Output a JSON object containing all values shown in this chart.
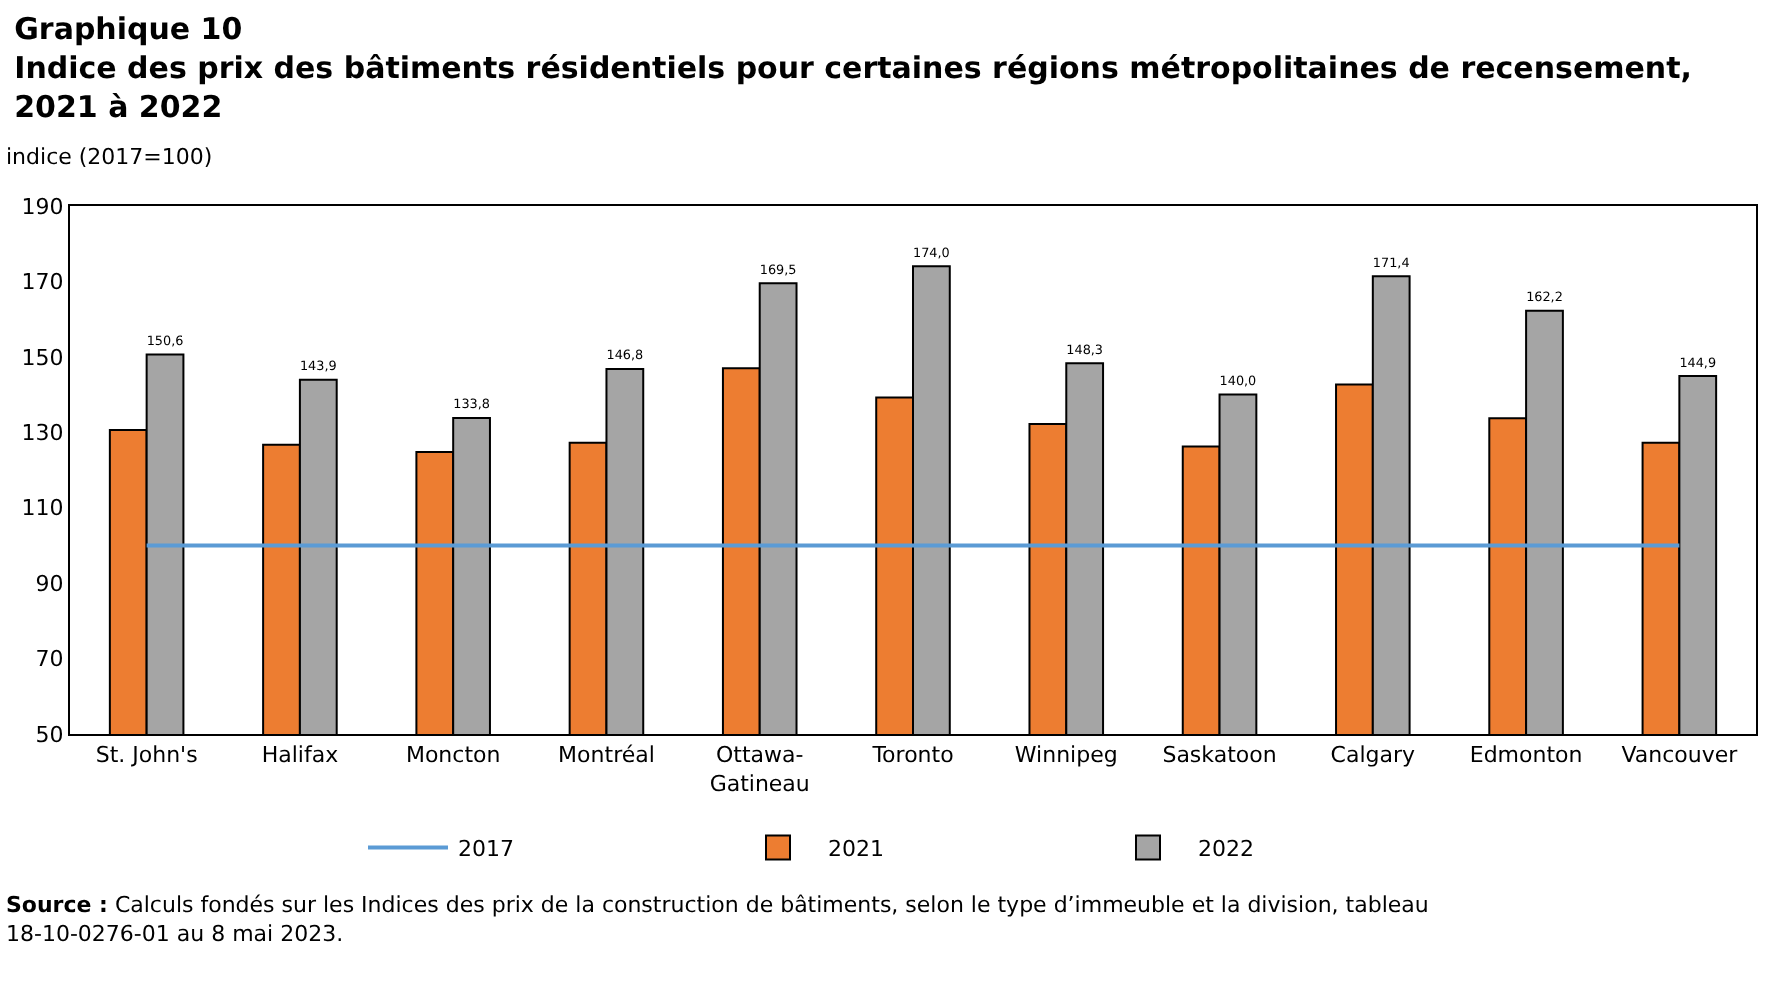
{
  "chart_data": {
    "type": "bar",
    "title": "Graphique 10",
    "subtitle": "Indice des prix des bâtiments résidentiels pour certaines régions métropolitaines de recensement, 2021 à 2022",
    "ylabel": "indice (2017=100)",
    "categories": [
      "St. John's",
      "Halifax",
      "Moncton",
      "Montréal",
      "Ottawa-Gatineau",
      "Toronto",
      "Winnipeg",
      "Saskatoon",
      "Calgary",
      "Edmonton",
      "Vancouver"
    ],
    "series": [
      {
        "name": "2017",
        "type": "line",
        "color": "#5b9bd5",
        "values": [
          100,
          100,
          100,
          100,
          100,
          100,
          100,
          100,
          100,
          100,
          100
        ]
      },
      {
        "name": "2021",
        "color": "#ed7d31",
        "values": [
          130.6,
          126.7,
          124.8,
          127.2,
          147.0,
          139.2,
          132.2,
          126.2,
          142.7,
          133.7,
          127.2
        ]
      },
      {
        "name": "2022",
        "color": "#a5a5a5",
        "values": [
          150.6,
          143.9,
          133.8,
          146.8,
          169.5,
          174.0,
          148.3,
          140.0,
          171.4,
          162.2,
          144.9
        ],
        "value_labels": [
          "150,6",
          "143,9",
          "133,8",
          "146,8",
          "169,5",
          "174,0",
          "148,3",
          "140,0",
          "171,4",
          "162,2",
          "144,9"
        ]
      }
    ],
    "ylim": [
      50,
      190
    ],
    "yticks": [
      50,
      70,
      90,
      110,
      130,
      150,
      170,
      190
    ],
    "legend": "bottom",
    "annotations": [
      "Source : Calculs fondés sur les Indices des prix de la construction de bâtiments, selon le type d’immeuble et la division, tableau 18-10-0276-01 au 8 mai 2023."
    ]
  }
}
